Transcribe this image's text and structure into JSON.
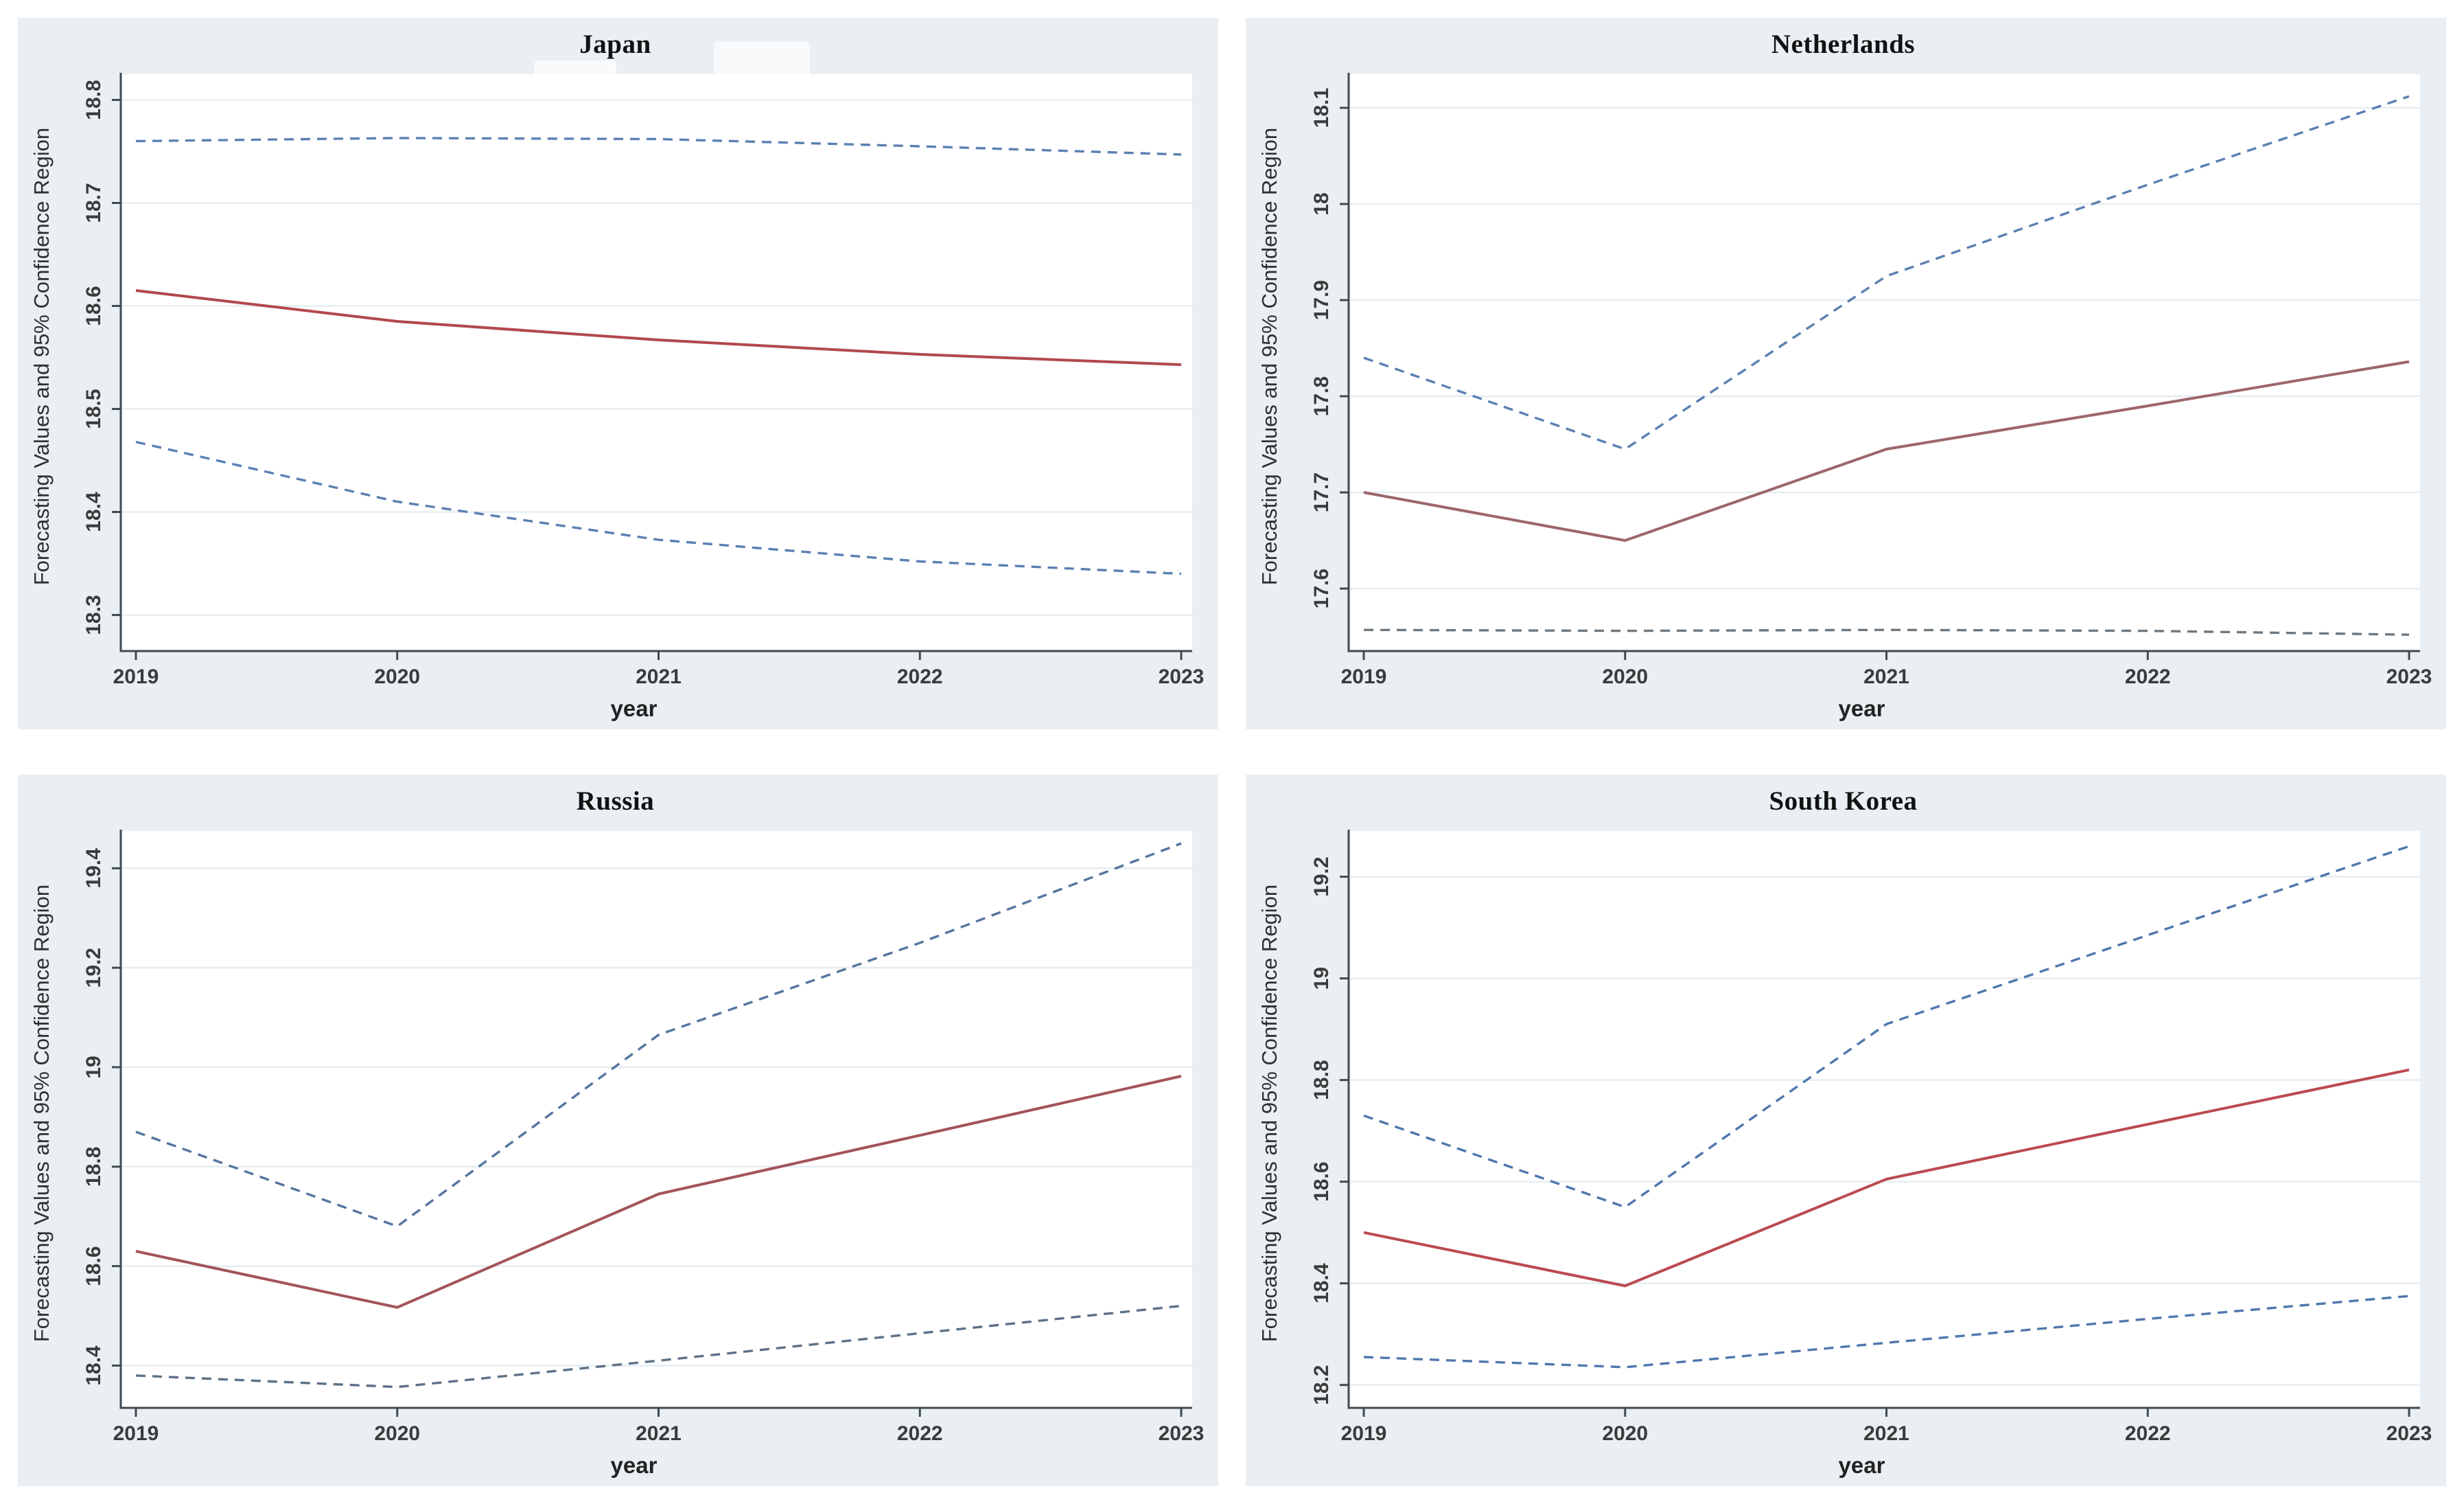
{
  "figure": {
    "background": "#ffffff",
    "panel_background": "#e9eff2",
    "plot_background": "#ffffff",
    "gridline_color": "#e6edf1",
    "axis_color": "#3f4a52"
  },
  "chart_data": [
    {
      "type": "line",
      "title": "Japan",
      "xlabel": "year",
      "ylabel": "Forecasting Values and 95% Confidence Region",
      "x": [
        "2019",
        "2020",
        "2021",
        "2022",
        "2023"
      ],
      "ylim": [
        18.265,
        18.825
      ],
      "yticks": [
        18.3,
        18.4,
        18.5,
        18.6,
        18.7,
        18.8
      ],
      "ytick_labels": [
        "18.3",
        "18.4",
        "18.5",
        "18.6",
        "18.7",
        "18.8"
      ],
      "grid": true,
      "legend": "none",
      "series": [
        {
          "name": "upper-95ci",
          "style": "dashed",
          "color": "#5b80b2",
          "values": [
            18.76,
            18.763,
            18.762,
            18.755,
            18.747
          ]
        },
        {
          "name": "point-forecast",
          "style": "solid",
          "color": "#b2484e",
          "values": [
            18.615,
            18.585,
            18.567,
            18.553,
            18.543
          ]
        },
        {
          "name": "lower-95ci",
          "style": "dashed",
          "color": "#5b80b2",
          "values": [
            18.468,
            18.41,
            18.373,
            18.352,
            18.34
          ]
        }
      ]
    },
    {
      "type": "line",
      "title": "Netherlands",
      "xlabel": "year",
      "ylabel": "Forecasting Values and 95% Confidence Region",
      "x": [
        "2019",
        "2020",
        "2021",
        "2022",
        "2023"
      ],
      "ylim": [
        17.535,
        18.135
      ],
      "yticks": [
        17.6,
        17.7,
        17.8,
        17.9,
        18.0,
        18.1
      ],
      "ytick_labels": [
        "17.6",
        "17.7",
        "17.8",
        "17.9",
        "18",
        "18.1"
      ],
      "grid": true,
      "legend": "none",
      "series": [
        {
          "name": "upper-95ci",
          "style": "dashed",
          "color": "#5b80b2",
          "values": [
            17.84,
            17.745,
            17.925,
            18.02,
            18.112
          ]
        },
        {
          "name": "point-forecast",
          "style": "solid",
          "color": "#9c666c",
          "values": [
            17.7,
            17.65,
            17.745,
            17.79,
            17.836
          ]
        },
        {
          "name": "lower-95ci",
          "style": "dashed",
          "color": "#6e7880",
          "values": [
            17.557,
            17.556,
            17.557,
            17.556,
            17.552
          ]
        }
      ]
    },
    {
      "type": "line",
      "title": "Russia",
      "xlabel": "year",
      "ylabel": "Forecasting Values and 95% Confidence Region",
      "x": [
        "2019",
        "2020",
        "2021",
        "2022",
        "2023"
      ],
      "ylim": [
        18.315,
        19.475
      ],
      "yticks": [
        18.4,
        18.6,
        18.8,
        19.0,
        19.2,
        19.4
      ],
      "ytick_labels": [
        "18.4",
        "18.6",
        "18.8",
        "19",
        "19.2",
        "19.4"
      ],
      "grid": true,
      "legend": "none",
      "series": [
        {
          "name": "upper-95ci",
          "style": "dashed",
          "color": "#54759f",
          "values": [
            18.87,
            18.68,
            19.065,
            19.25,
            19.45
          ]
        },
        {
          "name": "point-forecast",
          "style": "solid",
          "color": "#a35459",
          "values": [
            18.63,
            18.517,
            18.745,
            18.863,
            18.982
          ]
        },
        {
          "name": "lower-95ci",
          "style": "dashed",
          "color": "#5d7188",
          "values": [
            18.38,
            18.357,
            18.41,
            18.465,
            18.52
          ]
        }
      ]
    },
    {
      "type": "line",
      "title": "South Korea",
      "xlabel": "year",
      "ylabel": "Forecasting Values and 95% Confidence Region",
      "x": [
        "2019",
        "2020",
        "2021",
        "2022",
        "2023"
      ],
      "ylim": [
        18.155,
        19.29
      ],
      "yticks": [
        18.2,
        18.4,
        18.6,
        18.8,
        19.0,
        19.2
      ],
      "ytick_labels": [
        "18.2",
        "18.4",
        "18.6",
        "18.8",
        "19",
        "19.2"
      ],
      "grid": true,
      "legend": "none",
      "series": [
        {
          "name": "upper-95ci",
          "style": "dashed",
          "color": "#4f77ad",
          "values": [
            18.73,
            18.55,
            18.91,
            19.085,
            19.26
          ]
        },
        {
          "name": "point-forecast",
          "style": "solid",
          "color": "#bb4a50",
          "values": [
            18.5,
            18.395,
            18.605,
            18.713,
            18.82
          ]
        },
        {
          "name": "lower-95ci",
          "style": "dashed",
          "color": "#4f77ad",
          "values": [
            18.255,
            18.235,
            18.283,
            18.33,
            18.375
          ]
        }
      ]
    }
  ]
}
